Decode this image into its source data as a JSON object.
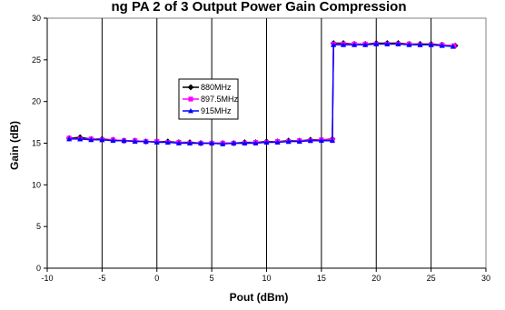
{
  "chart_data": {
    "type": "line",
    "title": "ng PA 2 of 3 Output Power Gain Compression",
    "xlabel": "Pout (dBm)",
    "ylabel": "Gain (dB)",
    "xlim": [
      -10,
      30
    ],
    "ylim": [
      0,
      30
    ],
    "x_ticks": [
      "-10",
      "-5",
      "0",
      "5",
      "10",
      "15",
      "20",
      "25",
      "30"
    ],
    "y_ticks": [
      "0",
      "5",
      "10",
      "15",
      "20",
      "25",
      "30"
    ],
    "grid": "vertical",
    "legend_position": "center-left",
    "series": [
      {
        "name": "880MHz",
        "color": "#000000",
        "marker": "diamond",
        "x": [
          -8,
          -7,
          -6,
          -5,
          -4,
          -3,
          -2,
          -1,
          0,
          1,
          2,
          3,
          4,
          5,
          6,
          7,
          8,
          9,
          10,
          11,
          12,
          13,
          14,
          15,
          16,
          16.1,
          17,
          18,
          19,
          20,
          21,
          22,
          23,
          24,
          25,
          26,
          27.2
        ],
        "y": [
          15.6,
          15.7,
          15.5,
          15.5,
          15.4,
          15.3,
          15.3,
          15.2,
          15.2,
          15.2,
          15.1,
          15.1,
          15.0,
          15.0,
          15.0,
          15.0,
          15.1,
          15.1,
          15.2,
          15.2,
          15.3,
          15.3,
          15.4,
          15.4,
          15.5,
          27.0,
          27.0,
          26.9,
          26.9,
          27.0,
          27.0,
          27.0,
          26.9,
          26.9,
          26.9,
          26.8,
          26.7
        ]
      },
      {
        "name": "897.5MHz",
        "color": "#ff00ff",
        "marker": "square",
        "x": [
          -8,
          -7,
          -6,
          -5,
          -4,
          -3,
          -2,
          -1,
          0,
          1,
          2,
          3,
          4,
          5,
          6,
          7,
          8,
          9,
          10,
          11,
          12,
          13,
          14,
          15,
          16,
          16.1,
          17,
          18,
          19,
          20,
          21,
          22,
          23,
          24,
          25,
          26,
          27.1
        ],
        "y": [
          15.6,
          15.5,
          15.5,
          15.4,
          15.4,
          15.3,
          15.3,
          15.2,
          15.2,
          15.1,
          15.1,
          15.0,
          15.0,
          15.0,
          15.0,
          15.0,
          15.0,
          15.1,
          15.1,
          15.2,
          15.2,
          15.3,
          15.3,
          15.4,
          15.4,
          26.9,
          26.9,
          26.9,
          26.9,
          26.9,
          26.9,
          26.9,
          26.9,
          26.8,
          26.8,
          26.8,
          26.7
        ]
      },
      {
        "name": "915MHz",
        "color": "#0000ff",
        "marker": "triangle",
        "x": [
          -8,
          -7,
          -6,
          -5,
          -4,
          -3,
          -2,
          -1,
          0,
          1,
          2,
          3,
          4,
          5,
          6,
          7,
          8,
          9,
          10,
          11,
          12,
          13,
          14,
          15,
          16,
          16.1,
          17,
          18,
          19,
          20,
          21,
          22,
          23,
          24,
          25,
          26,
          27.0
        ],
        "y": [
          15.5,
          15.5,
          15.4,
          15.4,
          15.3,
          15.3,
          15.2,
          15.2,
          15.1,
          15.1,
          15.0,
          15.0,
          15.0,
          15.0,
          14.9,
          15.0,
          15.0,
          15.0,
          15.1,
          15.1,
          15.2,
          15.2,
          15.3,
          15.3,
          15.3,
          26.8,
          26.8,
          26.8,
          26.8,
          26.9,
          26.9,
          26.9,
          26.8,
          26.8,
          26.8,
          26.7,
          26.6
        ]
      }
    ]
  }
}
